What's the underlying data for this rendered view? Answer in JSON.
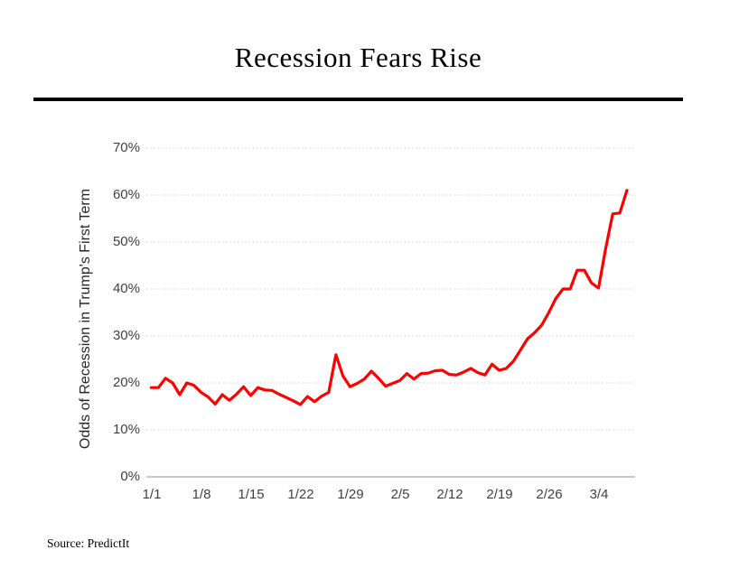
{
  "page": {
    "title": "Recession Fears Rise",
    "source": "Source: PredictIt"
  },
  "chart_data": {
    "type": "line",
    "title": "Recession Fears Rise",
    "xlabel": "",
    "ylabel": "Odds of Recession in Trump's First Term",
    "ylim": [
      0,
      70
    ],
    "y_tick_labels": [
      "0%",
      "10%",
      "20%",
      "30%",
      "40%",
      "50%",
      "60%",
      "70%"
    ],
    "x_tick_labels": [
      "1/1",
      "1/8",
      "1/15",
      "1/22",
      "1/29",
      "2/5",
      "2/12",
      "2/19",
      "2/26",
      "3/4"
    ],
    "grid": "horizontal dotted gridlines at each 10%, solid light axis at 0%",
    "legend": "none",
    "line_color": "#ff0000",
    "gridline_color": "#d9d9d9",
    "axis_color": "#bfbfbf",
    "tick_text_color": "#404040",
    "series": [
      {
        "name": "Odds of Recession in Trump's First Term",
        "x_unit": "daily from 1/1 to 3/9",
        "values": [
          19,
          19,
          21,
          20,
          17.5,
          20,
          19.5,
          18,
          17,
          15.5,
          17.5,
          16.3,
          17.6,
          19.2,
          17.3,
          19,
          18.5,
          18.4,
          17.6,
          16.9,
          16.2,
          15.4,
          17.1,
          16,
          17.2,
          18,
          26,
          21.5,
          19.2,
          19.9,
          20.8,
          22.5,
          21,
          19.3,
          19.9,
          20.5,
          22,
          20.8,
          22,
          22.1,
          22.6,
          22.7,
          21.8,
          21.7,
          22.3,
          23.1,
          22.2,
          21.7,
          24,
          22.7,
          23.1,
          24.6,
          27,
          29.4,
          30.7,
          32.3,
          35,
          38,
          40,
          40,
          44,
          44,
          41.3,
          40.2,
          48.5,
          56,
          56.2,
          61
        ]
      }
    ]
  }
}
